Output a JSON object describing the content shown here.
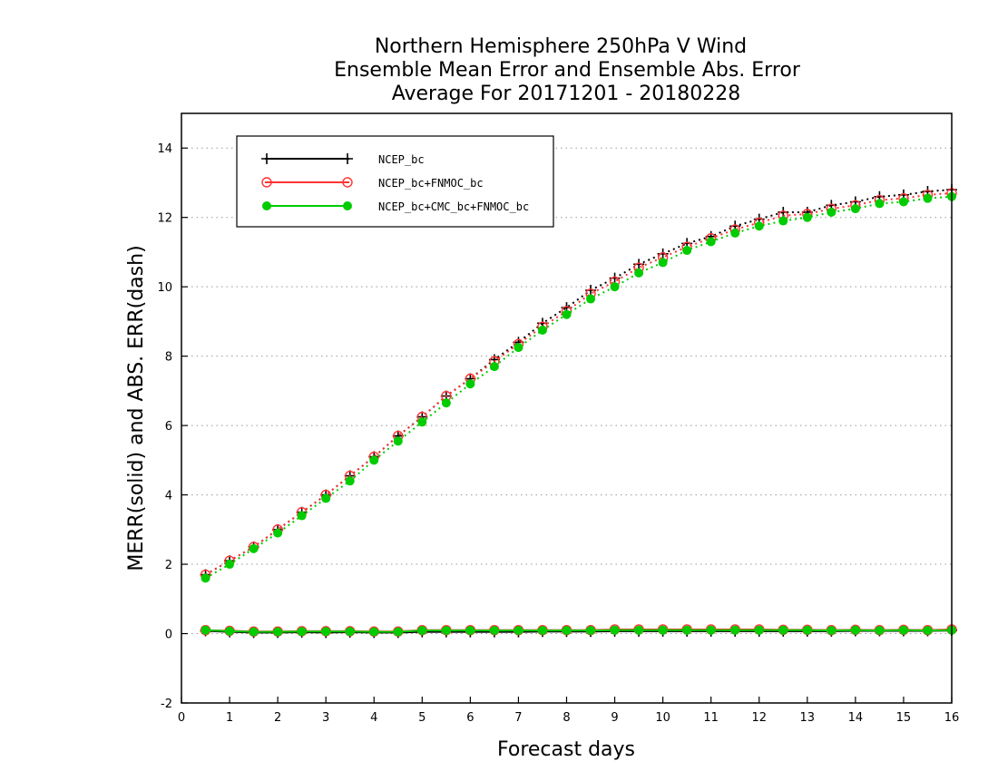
{
  "chart_data": {
    "type": "line",
    "title": [
      "Northern Hemisphere 250hPa V Wind",
      "Ensemble Mean Error and Ensemble Abs. Error",
      "Average For 20171201 - 20180228"
    ],
    "xlabel": "Forecast days",
    "ylabel": "MERR(solid) and ABS. ERR(dash)",
    "xlim": [
      0,
      16
    ],
    "ylim": [
      -2,
      15
    ],
    "xticks": [
      "0",
      "1",
      "2",
      "3",
      "4",
      "5",
      "6",
      "7",
      "8",
      "9",
      "10",
      "11",
      "12",
      "13",
      "14",
      "15",
      "16"
    ],
    "yticks": [
      "-2",
      "0",
      "2",
      "4",
      "6",
      "8",
      "10",
      "12",
      "14"
    ],
    "grid": true,
    "legend_position": "top-left",
    "x": [
      0.5,
      1,
      1.5,
      2,
      2.5,
      3,
      3.5,
      4,
      4.5,
      5,
      5.5,
      6,
      6.5,
      7,
      7.5,
      8,
      8.5,
      9,
      9.5,
      10,
      10.5,
      11,
      11.5,
      12,
      12.5,
      13,
      13.5,
      14,
      14.5,
      15,
      15.5,
      16
    ],
    "series": [
      {
        "name": "NCEP_bc",
        "color": "#000000",
        "marker": "plus",
        "abs_err": [
          1.7,
          2.1,
          2.5,
          3.0,
          3.5,
          4.0,
          4.55,
          5.1,
          5.7,
          6.25,
          6.85,
          7.35,
          7.9,
          8.4,
          8.95,
          9.4,
          9.9,
          10.25,
          10.65,
          10.95,
          11.25,
          11.45,
          11.75,
          11.95,
          12.15,
          12.15,
          12.35,
          12.45,
          12.6,
          12.65,
          12.75,
          12.8
        ],
        "mean_err": [
          0.08,
          0.05,
          0.03,
          0.03,
          0.04,
          0.03,
          0.04,
          0.03,
          0.03,
          0.05,
          0.05,
          0.05,
          0.05,
          0.05,
          0.06,
          0.06,
          0.06,
          0.07,
          0.07,
          0.07,
          0.07,
          0.07,
          0.07,
          0.07,
          0.07,
          0.07,
          0.07,
          0.08,
          0.08,
          0.08,
          0.08,
          0.09
        ]
      },
      {
        "name": "NCEP_bc+FNMOC_bc",
        "color": "#ff3333",
        "marker": "open-circle",
        "abs_err": [
          1.7,
          2.1,
          2.5,
          3.0,
          3.5,
          4.0,
          4.55,
          5.1,
          5.7,
          6.25,
          6.85,
          7.35,
          7.85,
          8.35,
          8.85,
          9.3,
          9.8,
          10.15,
          10.55,
          10.85,
          11.15,
          11.4,
          11.65,
          11.85,
          12.05,
          12.1,
          12.25,
          12.35,
          12.5,
          12.55,
          12.65,
          12.7
        ],
        "mean_err": [
          0.1,
          0.08,
          0.06,
          0.06,
          0.07,
          0.07,
          0.07,
          0.06,
          0.06,
          0.1,
          0.1,
          0.1,
          0.1,
          0.1,
          0.1,
          0.1,
          0.1,
          0.12,
          0.12,
          0.12,
          0.12,
          0.12,
          0.12,
          0.12,
          0.11,
          0.11,
          0.1,
          0.11,
          0.1,
          0.11,
          0.1,
          0.12
        ]
      },
      {
        "name": "NCEP_bc+CMC_bc+FNMOC_bc",
        "color": "#00cc00",
        "marker": "filled-circle",
        "abs_err": [
          1.6,
          2.0,
          2.45,
          2.9,
          3.4,
          3.9,
          4.4,
          5.0,
          5.55,
          6.1,
          6.65,
          7.2,
          7.7,
          8.25,
          8.75,
          9.2,
          9.65,
          10.0,
          10.4,
          10.7,
          11.05,
          11.3,
          11.55,
          11.75,
          11.9,
          12.0,
          12.15,
          12.25,
          12.4,
          12.45,
          12.55,
          12.6
        ],
        "mean_err": [
          0.1,
          0.07,
          0.05,
          0.05,
          0.06,
          0.06,
          0.06,
          0.05,
          0.05,
          0.09,
          0.09,
          0.09,
          0.09,
          0.09,
          0.09,
          0.09,
          0.09,
          0.1,
          0.1,
          0.1,
          0.1,
          0.1,
          0.1,
          0.1,
          0.1,
          0.1,
          0.09,
          0.1,
          0.09,
          0.1,
          0.09,
          0.1
        ]
      }
    ]
  }
}
